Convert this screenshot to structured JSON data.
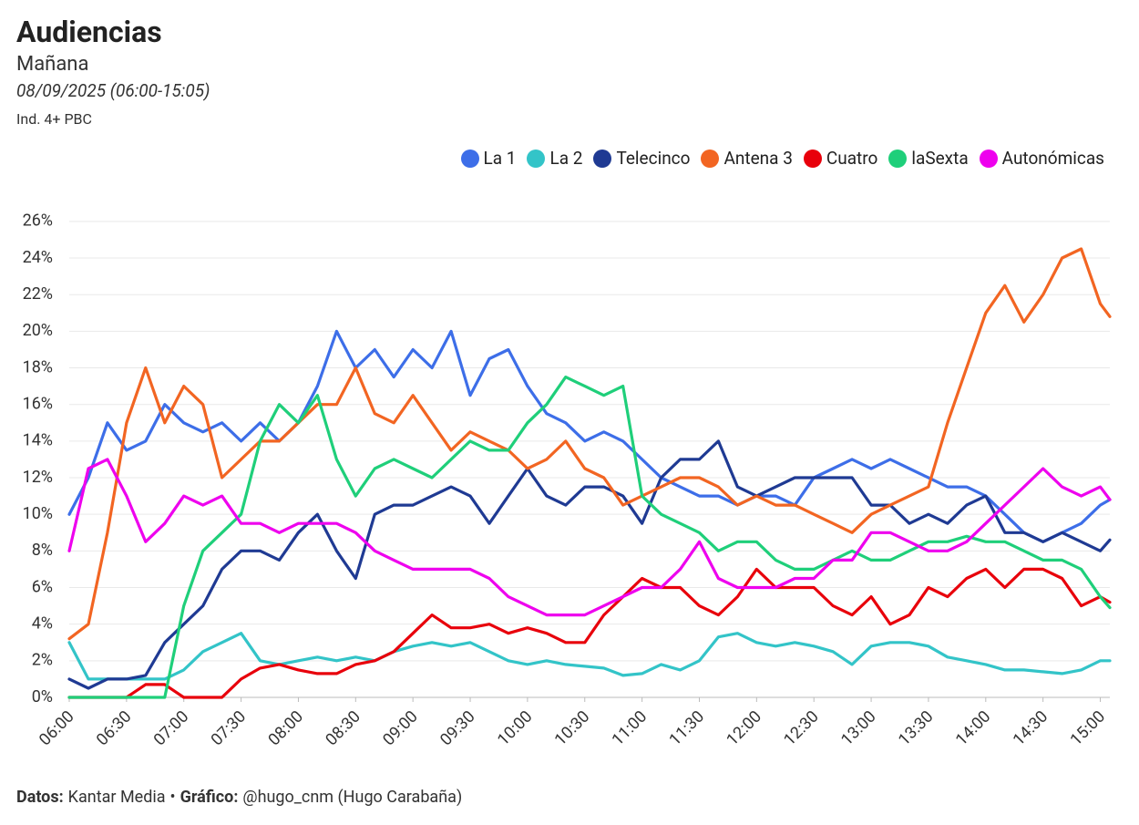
{
  "chart_data": {
    "type": "line",
    "title": "Audiencias",
    "subtitle": "Mañana",
    "date_label": "08/09/2025 (06:00-15:05)",
    "note": "Ind. 4+ PBC",
    "footer": {
      "items": [
        {
          "label": "Datos:",
          "text": "Kantar Media"
        },
        {
          "label": "Gráfico:",
          "text": "@hugo_cnm (Hugo Carabaña)"
        }
      ],
      "separator": "•"
    },
    "legend": "top-right",
    "grid": true,
    "x": [
      "06:00",
      "06:10",
      "06:20",
      "06:30",
      "06:40",
      "06:50",
      "07:00",
      "07:10",
      "07:20",
      "07:30",
      "07:40",
      "07:50",
      "08:00",
      "08:10",
      "08:20",
      "08:30",
      "08:40",
      "08:50",
      "09:00",
      "09:10",
      "09:20",
      "09:30",
      "09:40",
      "09:50",
      "10:00",
      "10:10",
      "10:20",
      "10:30",
      "10:40",
      "10:50",
      "11:00",
      "11:10",
      "11:20",
      "11:30",
      "11:40",
      "11:50",
      "12:00",
      "12:10",
      "12:20",
      "12:30",
      "12:40",
      "12:50",
      "13:00",
      "13:10",
      "13:20",
      "13:30",
      "13:40",
      "13:50",
      "14:00",
      "14:10",
      "14:20",
      "14:30",
      "14:40",
      "14:50",
      "15:00",
      "15:05"
    ],
    "xlim": [
      "06:00",
      "15:05"
    ],
    "xticks": [
      "06:00",
      "06:30",
      "07:00",
      "07:30",
      "08:00",
      "08:30",
      "09:00",
      "09:30",
      "10:00",
      "10:30",
      "11:00",
      "11:30",
      "12:00",
      "12:30",
      "13:00",
      "13:30",
      "14:00",
      "14:30",
      "15:00"
    ],
    "ylim": [
      0,
      27
    ],
    "yticks": [
      {
        "value": 0,
        "label": "0%"
      },
      {
        "value": 2,
        "label": "2%"
      },
      {
        "value": 4,
        "label": "4%"
      },
      {
        "value": 6,
        "label": "6%"
      },
      {
        "value": 8,
        "label": "8%"
      },
      {
        "value": 10,
        "label": "10%"
      },
      {
        "value": 12,
        "label": "12%"
      },
      {
        "value": 14,
        "label": "14%"
      },
      {
        "value": 16,
        "label": "16%"
      },
      {
        "value": 18,
        "label": "18%"
      },
      {
        "value": 20,
        "label": "20%"
      },
      {
        "value": 22,
        "label": "22%"
      },
      {
        "value": 24,
        "label": "24%"
      },
      {
        "value": 26,
        "label": "26%"
      }
    ],
    "series": [
      {
        "name": "La 1",
        "color": "#3d6ee8",
        "values": [
          10,
          12,
          15,
          13.5,
          14,
          16,
          15,
          14.5,
          15,
          14,
          15,
          14,
          15,
          17,
          20,
          18,
          19,
          17.5,
          19,
          18,
          20,
          16.5,
          18.5,
          19,
          17,
          15.5,
          15,
          14,
          14.5,
          14,
          13,
          12,
          11.5,
          11,
          11,
          10.5,
          11,
          11,
          10.5,
          12,
          12.5,
          13,
          12.5,
          13,
          12.5,
          12,
          11.5,
          11.5,
          11,
          10,
          9,
          8.5,
          9,
          9.5,
          10.5,
          10.8
        ]
      },
      {
        "name": "La 2",
        "color": "#33c4c8",
        "values": [
          3,
          1,
          1,
          1,
          1,
          1,
          1.5,
          2.5,
          3,
          3.5,
          2,
          1.8,
          2,
          2.2,
          2,
          2.2,
          2,
          2.5,
          2.8,
          3,
          2.8,
          3,
          2.5,
          2,
          1.8,
          2,
          1.8,
          1.7,
          1.6,
          1.2,
          1.3,
          1.8,
          1.5,
          2,
          3.3,
          3.5,
          3,
          2.8,
          3,
          2.8,
          2.5,
          1.8,
          2.8,
          3,
          3,
          2.8,
          2.2,
          2,
          1.8,
          1.5,
          1.5,
          1.4,
          1.3,
          1.5,
          2,
          2
        ]
      },
      {
        "name": "Telecinco",
        "color": "#1f3a93",
        "values": [
          1,
          0.5,
          1,
          1,
          1.2,
          3,
          4,
          5,
          7,
          8,
          8,
          7.5,
          9,
          10,
          8,
          6.5,
          10,
          10.5,
          10.5,
          11,
          11.5,
          11,
          9.5,
          11,
          12.5,
          11,
          10.5,
          11.5,
          11.5,
          11,
          9.5,
          12,
          13,
          13,
          14,
          11.5,
          11,
          11.5,
          12,
          12,
          12,
          12,
          10.5,
          10.5,
          9.5,
          10,
          9.5,
          10.5,
          11,
          9,
          9,
          8.5,
          9,
          8.5,
          8,
          8.6
        ]
      },
      {
        "name": "Antena 3",
        "color": "#f26522",
        "values": [
          3.2,
          4,
          9,
          15,
          18,
          15,
          17,
          16,
          12,
          13,
          14,
          14,
          15,
          16,
          16,
          18,
          15.5,
          15,
          16.5,
          15,
          13.5,
          14.5,
          14,
          13.5,
          12.5,
          13,
          14,
          12.5,
          12,
          10.5,
          11,
          11.5,
          12,
          12,
          11.5,
          10.5,
          11,
          10.5,
          10.5,
          10,
          9.5,
          9,
          10,
          10.5,
          11,
          11.5,
          15,
          18,
          21,
          22.5,
          20.5,
          22,
          24,
          24.5,
          21.5,
          20.8
        ]
      },
      {
        "name": "Cuatro",
        "color": "#e8000b",
        "values": [
          0,
          0,
          0,
          0,
          0.7,
          0.7,
          0,
          0,
          0,
          1,
          1.6,
          1.8,
          1.5,
          1.3,
          1.3,
          1.8,
          2,
          2.5,
          3.5,
          4.5,
          3.8,
          3.8,
          4,
          3.5,
          3.8,
          3.5,
          3,
          3,
          4.5,
          5.5,
          6.5,
          6,
          6,
          5,
          4.5,
          5.5,
          7,
          6,
          6,
          6,
          5,
          4.5,
          5.5,
          4,
          4.5,
          6,
          5.5,
          6.5,
          7,
          6,
          7,
          7,
          6.5,
          5,
          5.5,
          5.2
        ]
      },
      {
        "name": "laSexta",
        "color": "#1fcf7a",
        "values": [
          0,
          0,
          0,
          0,
          0,
          0,
          5,
          8,
          9,
          10,
          14,
          16,
          15,
          16.5,
          13,
          11,
          12.5,
          13,
          12.5,
          12,
          13,
          14,
          13.5,
          13.5,
          15,
          16,
          17.5,
          17,
          16.5,
          17,
          11,
          10,
          9.5,
          9,
          8,
          8.5,
          8.5,
          7.5,
          7,
          7,
          7.5,
          8,
          7.5,
          7.5,
          8,
          8.5,
          8.5,
          8.8,
          8.5,
          8.5,
          8,
          7.5,
          7.5,
          7,
          5.5,
          4.9
        ]
      },
      {
        "name": "Autonómicas",
        "color": "#ee00ee",
        "values": [
          8,
          12.5,
          13,
          11,
          8.5,
          9.5,
          11,
          10.5,
          11,
          9.5,
          9.5,
          9,
          9.5,
          9.5,
          9.5,
          9,
          8,
          7.5,
          7,
          7,
          7,
          7,
          6.5,
          5.5,
          5,
          4.5,
          4.5,
          4.5,
          5,
          5.5,
          6,
          6,
          7,
          8.5,
          6.5,
          6,
          6,
          6,
          6.5,
          6.5,
          7.5,
          7.5,
          9,
          9,
          8.5,
          8,
          8,
          8.5,
          9.5,
          10.5,
          11.5,
          12.5,
          11.5,
          11,
          11.5,
          10.8
        ]
      }
    ]
  }
}
